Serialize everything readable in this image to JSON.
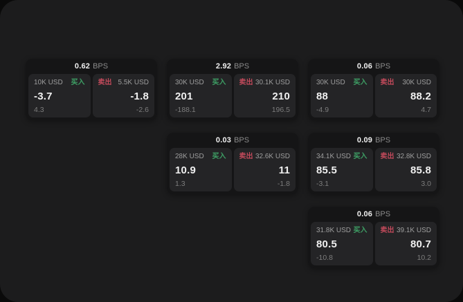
{
  "labels": {
    "bps_unit": "BPS",
    "buy": "买入",
    "sell": "卖出"
  },
  "colors": {
    "background": "#0a0a0a",
    "panel": "#1c1c1d",
    "card": "#151516",
    "cell": "#242426",
    "buy_accent": "#3ea065",
    "sell_accent": "#c24a5b",
    "text_primary": "#f0f0f0",
    "text_secondary": "#9e9e9e",
    "text_muted": "#8b8b8b",
    "text_dim": "#7d7d7d"
  },
  "cards": [
    {
      "bps": "0.62",
      "buy": {
        "size": "10K USD",
        "price": "-3.7",
        "delta": "4.3"
      },
      "sell": {
        "size": "5.5K USD",
        "price": "-1.8",
        "delta": "-2.6"
      }
    },
    {
      "bps": "2.92",
      "buy": {
        "size": "30K USD",
        "price": "201",
        "delta": "-188.1"
      },
      "sell": {
        "size": "30.1K USD",
        "price": "210",
        "delta": "196.5"
      }
    },
    {
      "bps": "0.06",
      "buy": {
        "size": "30K USD",
        "price": "88",
        "delta": "-4.9"
      },
      "sell": {
        "size": "30K USD",
        "price": "88.2",
        "delta": "4.7"
      }
    },
    {
      "bps": "0.03",
      "buy": {
        "size": "28K USD",
        "price": "10.9",
        "delta": "1.3"
      },
      "sell": {
        "size": "32.6K USD",
        "price": "11",
        "delta": "-1.8"
      }
    },
    {
      "bps": "0.09",
      "buy": {
        "size": "34.1K USD",
        "price": "85.5",
        "delta": "-3.1"
      },
      "sell": {
        "size": "32.8K USD",
        "price": "85.8",
        "delta": "3.0"
      }
    },
    {
      "bps": "0.06",
      "buy": {
        "size": "31.8K USD",
        "price": "80.5",
        "delta": "-10.8"
      },
      "sell": {
        "size": "39.1K USD",
        "price": "80.7",
        "delta": "10.2"
      }
    }
  ]
}
